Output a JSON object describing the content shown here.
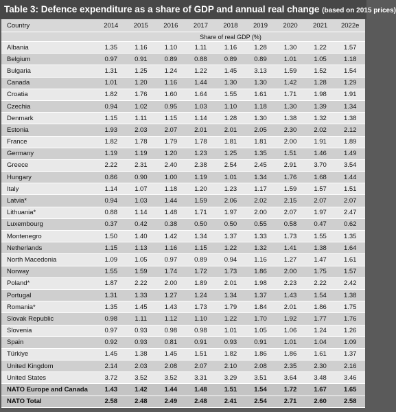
{
  "header": {
    "title": "Table 3: Defence expenditure as a share of GDP and annual real change",
    "note": "(based on 2015 prices)"
  },
  "table": {
    "columns": [
      "Country",
      "2014",
      "2015",
      "2016",
      "2017",
      "2018",
      "2019",
      "2020",
      "2021",
      "2022e"
    ],
    "unit_label": "Share of real GDP (%)",
    "rows": [
      [
        "Albania",
        "1.35",
        "1.16",
        "1.10",
        "1.11",
        "1.16",
        "1.28",
        "1.30",
        "1.22",
        "1.57"
      ],
      [
        "Belgium",
        "0.97",
        "0.91",
        "0.89",
        "0.88",
        "0.89",
        "0.89",
        "1.01",
        "1.05",
        "1.18"
      ],
      [
        "Bulgaria",
        "1.31",
        "1.25",
        "1.24",
        "1.22",
        "1.45",
        "3.13",
        "1.59",
        "1.52",
        "1.54"
      ],
      [
        "Canada",
        "1.01",
        "1.20",
        "1.16",
        "1.44",
        "1.30",
        "1.30",
        "1.42",
        "1.28",
        "1.29"
      ],
      [
        "Croatia",
        "1.82",
        "1.76",
        "1.60",
        "1.64",
        "1.55",
        "1.61",
        "1.71",
        "1.98",
        "1.91"
      ],
      [
        "Czechia",
        "0.94",
        "1.02",
        "0.95",
        "1.03",
        "1.10",
        "1.18",
        "1.30",
        "1.39",
        "1.34"
      ],
      [
        "Denmark",
        "1.15",
        "1.11",
        "1.15",
        "1.14",
        "1.28",
        "1.30",
        "1.38",
        "1.32",
        "1.38"
      ],
      [
        "Estonia",
        "1.93",
        "2.03",
        "2.07",
        "2.01",
        "2.01",
        "2.05",
        "2.30",
        "2.02",
        "2.12"
      ],
      [
        "France",
        "1.82",
        "1.78",
        "1.79",
        "1.78",
        "1.81",
        "1.81",
        "2.00",
        "1.91",
        "1.89"
      ],
      [
        "Germany",
        "1.19",
        "1.19",
        "1.20",
        "1.23",
        "1.25",
        "1.35",
        "1.51",
        "1.46",
        "1.49"
      ],
      [
        "Greece",
        "2.22",
        "2.31",
        "2.40",
        "2.38",
        "2.54",
        "2.45",
        "2.91",
        "3.70",
        "3.54"
      ],
      [
        "Hungary",
        "0.86",
        "0.90",
        "1.00",
        "1.19",
        "1.01",
        "1.34",
        "1.76",
        "1.68",
        "1.44"
      ],
      [
        "Italy",
        "1.14",
        "1.07",
        "1.18",
        "1.20",
        "1.23",
        "1.17",
        "1.59",
        "1.57",
        "1.51"
      ],
      [
        "Latvia*",
        "0.94",
        "1.03",
        "1.44",
        "1.59",
        "2.06",
        "2.02",
        "2.15",
        "2.07",
        "2.07"
      ],
      [
        "Lithuania*",
        "0.88",
        "1.14",
        "1.48",
        "1.71",
        "1.97",
        "2.00",
        "2.07",
        "1.97",
        "2.47"
      ],
      [
        "Luxembourg",
        "0.37",
        "0.42",
        "0.38",
        "0.50",
        "0.50",
        "0.55",
        "0.58",
        "0.47",
        "0.62"
      ],
      [
        "Montenegro",
        "1.50",
        "1.40",
        "1.42",
        "1.34",
        "1.37",
        "1.33",
        "1.73",
        "1.55",
        "1.35"
      ],
      [
        "Netherlands",
        "1.15",
        "1.13",
        "1.16",
        "1.15",
        "1.22",
        "1.32",
        "1.41",
        "1.38",
        "1.64"
      ],
      [
        "North Macedonia",
        "1.09",
        "1.05",
        "0.97",
        "0.89",
        "0.94",
        "1.16",
        "1.27",
        "1.47",
        "1.61"
      ],
      [
        "Norway",
        "1.55",
        "1.59",
        "1.74",
        "1.72",
        "1.73",
        "1.86",
        "2.00",
        "1.75",
        "1.57"
      ],
      [
        "Poland*",
        "1.87",
        "2.22",
        "2.00",
        "1.89",
        "2.01",
        "1.98",
        "2.23",
        "2.22",
        "2.42"
      ],
      [
        "Portugal",
        "1.31",
        "1.33",
        "1.27",
        "1.24",
        "1.34",
        "1.37",
        "1.43",
        "1.54",
        "1.38"
      ],
      [
        "Romania*",
        "1.35",
        "1.45",
        "1.43",
        "1.73",
        "1.79",
        "1.84",
        "2.01",
        "1.86",
        "1.75"
      ],
      [
        "Slovak Republic",
        "0.98",
        "1.11",
        "1.12",
        "1.10",
        "1.22",
        "1.70",
        "1.92",
        "1.77",
        "1.76"
      ],
      [
        "Slovenia",
        "0.97",
        "0.93",
        "0.98",
        "0.98",
        "1.01",
        "1.05",
        "1.06",
        "1.24",
        "1.26"
      ],
      [
        "Spain",
        "0.92",
        "0.93",
        "0.81",
        "0.91",
        "0.93",
        "0.91",
        "1.01",
        "1.04",
        "1.09"
      ],
      [
        "Türkiye",
        "1.45",
        "1.38",
        "1.45",
        "1.51",
        "1.82",
        "1.86",
        "1.86",
        "1.61",
        "1.37"
      ],
      [
        "United Kingdom",
        "2.14",
        "2.03",
        "2.08",
        "2.07",
        "2.10",
        "2.08",
        "2.35",
        "2.30",
        "2.16"
      ],
      [
        "United States",
        "3.72",
        "3.52",
        "3.52",
        "3.31",
        "3.29",
        "3.51",
        "3.64",
        "3.48",
        "3.46"
      ],
      [
        "NATO Europe and Canada",
        "1.43",
        "1.42",
        "1.44",
        "1.48",
        "1.51",
        "1.54",
        "1.72",
        "1.67",
        "1.65"
      ],
      [
        "NATO Total",
        "2.58",
        "2.48",
        "2.49",
        "2.48",
        "2.41",
        "2.54",
        "2.71",
        "2.60",
        "2.58"
      ]
    ]
  }
}
